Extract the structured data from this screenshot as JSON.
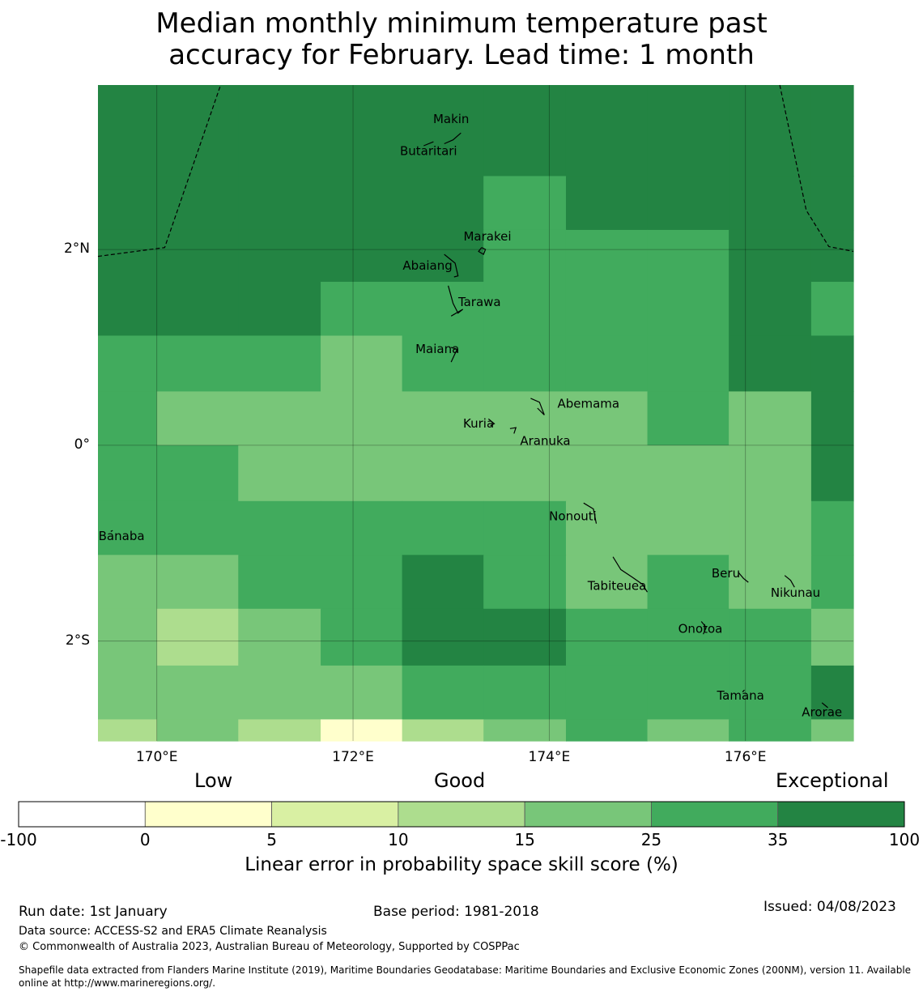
{
  "title": {
    "line1": "Median monthly minimum temperature past",
    "line2": "accuracy for February. Lead time: 1 month"
  },
  "map": {
    "lon_range": [
      169.4,
      177.1
    ],
    "lat_range": [
      -3.02,
      3.68
    ],
    "grid_lons": [
      170,
      172,
      174,
      176
    ],
    "grid_lats": [
      2,
      0,
      -2
    ],
    "lon_labels": [
      "170°E",
      "172°E",
      "174°E",
      "176°E"
    ],
    "lat_labels": [
      "2°N",
      "0°",
      "2°S"
    ],
    "palette": {
      "c100": "#238443",
      "c35": "#41ab5d",
      "c25": "#78c679",
      "c15": "#addd8e",
      "c10": "#d9f0a3",
      "c5": "#ffffcc",
      "c0": "#ffffff"
    },
    "skill_grid": {
      "row_edges_lat": [
        3.68,
        2.75,
        2.2,
        1.67,
        1.12,
        0.55,
        0.0,
        -0.57,
        -1.12,
        -1.67,
        -2.25,
        -2.8,
        -3.02
      ],
      "col_edges_lon": [
        169.4,
        170.0,
        170.83,
        171.67,
        172.5,
        173.33,
        174.17,
        175.0,
        175.83,
        176.67,
        177.1
      ],
      "rows": [
        [
          "c100",
          "c100",
          "c100",
          "c100",
          "c100",
          "c100",
          "c100",
          "c100",
          "c100",
          "c100"
        ],
        [
          "c100",
          "c100",
          "c100",
          "c100",
          "c100",
          "c35",
          "c100",
          "c100",
          "c100",
          "c100"
        ],
        [
          "c100",
          "c100",
          "c100",
          "c100",
          "c100",
          "c35",
          "c35",
          "c35",
          "c100",
          "c100"
        ],
        [
          "c100",
          "c100",
          "c100",
          "c35",
          "c35",
          "c35",
          "c35",
          "c35",
          "c100",
          "c35"
        ],
        [
          "c35",
          "c35",
          "c35",
          "c25",
          "c35",
          "c35",
          "c35",
          "c35",
          "c100",
          "c100"
        ],
        [
          "c35",
          "c25",
          "c25",
          "c25",
          "c25",
          "c25",
          "c25",
          "c35",
          "c25",
          "c100"
        ],
        [
          "c35",
          "c35",
          "c25",
          "c25",
          "c25",
          "c25",
          "c25",
          "c25",
          "c25",
          "c100"
        ],
        [
          "c35",
          "c35",
          "c35",
          "c35",
          "c35",
          "c35",
          "c25",
          "c25",
          "c25",
          "c35"
        ],
        [
          "c25",
          "c25",
          "c35",
          "c35",
          "c100",
          "c35",
          "c25",
          "c35",
          "c25",
          "c35"
        ],
        [
          "c25",
          "c15",
          "c25",
          "c35",
          "c100",
          "c100",
          "c35",
          "c35",
          "c35",
          "c25"
        ],
        [
          "c25",
          "c25",
          "c25",
          "c25",
          "c35",
          "c35",
          "c35",
          "c35",
          "c35",
          "c100"
        ],
        [
          "c15",
          "c25",
          "c15",
          "c5",
          "c15",
          "c25",
          "c35",
          "c25",
          "c35",
          "c25"
        ]
      ]
    },
    "eez_boundaries": [
      [
        [
          169.4,
          1.93
        ],
        [
          170.08,
          2.02
        ],
        [
          170.65,
          3.68
        ]
      ],
      [
        [
          176.35,
          3.68
        ],
        [
          176.62,
          2.4
        ],
        [
          176.85,
          2.03
        ],
        [
          177.1,
          1.98
        ]
      ]
    ],
    "islands": [
      {
        "name": "Makin",
        "lon": 173.0,
        "lat": 3.33,
        "shape": [
          [
            172.93,
            3.08
          ],
          [
            173.02,
            3.12
          ],
          [
            173.1,
            3.19
          ]
        ]
      },
      {
        "name": "Butaritari",
        "lon": 172.77,
        "lat": 3.0,
        "shape": [
          [
            172.72,
            3.06
          ],
          [
            172.82,
            3.1
          ]
        ]
      },
      {
        "name": "Marakei",
        "lon": 173.37,
        "lat": 2.13,
        "shape": [
          [
            173.31,
            2.02
          ],
          [
            173.35,
            2.0
          ],
          [
            173.33,
            1.95
          ],
          [
            173.28,
            1.98
          ],
          [
            173.31,
            2.02
          ]
        ]
      },
      {
        "name": "Abaiang",
        "lon": 172.76,
        "lat": 1.83,
        "shape": [
          [
            172.93,
            1.95
          ],
          [
            173.04,
            1.86
          ],
          [
            173.07,
            1.73
          ],
          [
            173.03,
            1.72
          ]
        ]
      },
      {
        "name": "Tarawa",
        "lon": 173.29,
        "lat": 1.46,
        "shape": [
          [
            172.97,
            1.63
          ],
          [
            173.02,
            1.45
          ],
          [
            173.07,
            1.35
          ],
          [
            173.12,
            1.39
          ],
          [
            173.0,
            1.32
          ]
        ]
      },
      {
        "name": "Maiana",
        "lon": 172.86,
        "lat": 0.98,
        "shape": [
          [
            173.0,
            1.0
          ],
          [
            173.06,
            0.98
          ],
          [
            173.0,
            0.85
          ]
        ]
      },
      {
        "name": "Abemama",
        "lon": 174.4,
        "lat": 0.42,
        "shape": [
          [
            173.81,
            0.48
          ],
          [
            173.9,
            0.44
          ],
          [
            173.95,
            0.31
          ],
          [
            173.88,
            0.38
          ]
        ]
      },
      {
        "name": "Kuria",
        "lon": 173.28,
        "lat": 0.22,
        "shape": [
          [
            173.38,
            0.27
          ],
          [
            173.44,
            0.22
          ],
          [
            173.4,
            0.2
          ]
        ]
      },
      {
        "name": "Aranuka",
        "lon": 173.96,
        "lat": 0.04,
        "shape": [
          [
            173.6,
            0.17
          ],
          [
            173.66,
            0.18
          ],
          [
            173.64,
            0.12
          ]
        ]
      },
      {
        "name": "Nonouti",
        "lon": 174.24,
        "lat": -0.73,
        "shape": [
          [
            174.35,
            -0.59
          ],
          [
            174.45,
            -0.65
          ],
          [
            174.48,
            -0.8
          ]
        ]
      },
      {
        "name": "Banaba",
        "lon": 169.64,
        "lat": -0.93,
        "shape": [
          [
            169.53,
            -0.88
          ],
          [
            169.55,
            -0.87
          ]
        ]
      },
      {
        "name": "Tabiteuea",
        "lon": 174.69,
        "lat": -1.44,
        "shape": [
          [
            174.65,
            -1.14
          ],
          [
            174.73,
            -1.27
          ],
          [
            174.85,
            -1.35
          ],
          [
            174.95,
            -1.42
          ],
          [
            175.0,
            -1.5
          ]
        ]
      },
      {
        "name": "Beru",
        "lon": 175.8,
        "lat": -1.31,
        "shape": [
          [
            175.93,
            -1.3
          ],
          [
            175.98,
            -1.36
          ],
          [
            176.03,
            -1.4
          ]
        ]
      },
      {
        "name": "Nikunau",
        "lon": 176.51,
        "lat": -1.51,
        "shape": [
          [
            176.4,
            -1.33
          ],
          [
            176.46,
            -1.38
          ],
          [
            176.5,
            -1.45
          ]
        ]
      },
      {
        "name": "Onotoa",
        "lon": 175.54,
        "lat": -1.88,
        "shape": [
          [
            175.55,
            -1.8
          ],
          [
            175.6,
            -1.86
          ],
          [
            175.57,
            -1.93
          ]
        ]
      },
      {
        "name": "Tamana",
        "lon": 175.95,
        "lat": -2.56,
        "shape": [
          [
            175.97,
            -2.52
          ],
          [
            175.99,
            -2.5
          ]
        ]
      },
      {
        "name": "Arorae",
        "lon": 176.78,
        "lat": -2.73,
        "shape": [
          [
            176.78,
            -2.63
          ],
          [
            176.84,
            -2.68
          ]
        ]
      }
    ]
  },
  "categories": {
    "low": "Low",
    "good": "Good",
    "exceptional": "Exceptional"
  },
  "colorbar": {
    "ticks": [
      "-100",
      "0",
      "5",
      "10",
      "15",
      "25",
      "35",
      "100"
    ],
    "segments": [
      "c0",
      "c5",
      "c10",
      "c15",
      "c25",
      "c35",
      "c100"
    ],
    "label": "Linear error in probability space skill score (%)"
  },
  "footer": {
    "run_date": "Run date: 1st January",
    "base_period": "Base period: 1981-2018",
    "issued": "Issued: 04/08/2023",
    "data_source": "Data source: ACCESS-S2 and ERA5 Climate Reanalysis",
    "copyright": "© Commonwealth of Australia 2023, Australian Bureau of Meteorology, Supported by COSPPac",
    "shapefile_line1": "Shapefile data extracted from Flanders Marine Institute (2019), Maritime Boundaries Geodatabase: Maritime Boundaries and Exclusive Economic Zones (200NM), version 11. Available",
    "shapefile_line2": "online at http://www.marineregions.org/."
  }
}
